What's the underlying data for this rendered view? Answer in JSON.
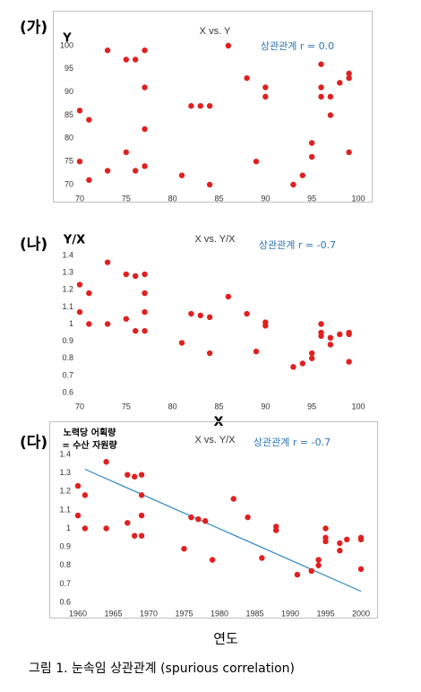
{
  "caption": "그림 1. 눈속임 상관관계 (spurious correlation)",
  "chart_data": [
    {
      "panel": "(가)",
      "type": "scatter",
      "title": "X vs. Y",
      "annotation": "상관관계 r = 0.0",
      "ylabel": "Y",
      "xlabel": "",
      "xlim": [
        70,
        100
      ],
      "ylim": [
        70,
        100
      ],
      "xticks": [
        70,
        75,
        80,
        85,
        90,
        95,
        100
      ],
      "yticks": [
        70,
        75,
        80,
        85,
        90,
        95,
        100
      ],
      "ytick_labels": [
        "70",
        "75",
        "80",
        "85",
        "90",
        "95",
        "100"
      ],
      "point_color": "#e02020",
      "points": [
        [
          70,
          86
        ],
        [
          70,
          75
        ],
        [
          71,
          84
        ],
        [
          71,
          71
        ],
        [
          73,
          99
        ],
        [
          73,
          73
        ],
        [
          75,
          97
        ],
        [
          75,
          77
        ],
        [
          76,
          97
        ],
        [
          76,
          73
        ],
        [
          77,
          99
        ],
        [
          77,
          91
        ],
        [
          77,
          82
        ],
        [
          77,
          74
        ],
        [
          81,
          72
        ],
        [
          82,
          87
        ],
        [
          83,
          87
        ],
        [
          84,
          87
        ],
        [
          84,
          70
        ],
        [
          86,
          100
        ],
        [
          88,
          93
        ],
        [
          89,
          75
        ],
        [
          90,
          91
        ],
        [
          90,
          89
        ],
        [
          93,
          70
        ],
        [
          94,
          72
        ],
        [
          95,
          79
        ],
        [
          95,
          76
        ],
        [
          96,
          96
        ],
        [
          96,
          91
        ],
        [
          96,
          89
        ],
        [
          97,
          89
        ],
        [
          97,
          85
        ],
        [
          98,
          92
        ],
        [
          99,
          94
        ],
        [
          99,
          93
        ],
        [
          99,
          77
        ]
      ]
    },
    {
      "panel": "(나)",
      "type": "scatter",
      "title": "X vs. Y/X",
      "annotation": "상관관계 r = -0.7",
      "ylabel": "Y/X",
      "xlabel": "X",
      "xlim": [
        70,
        100
      ],
      "ylim": [
        0.6,
        1.4
      ],
      "xticks": [
        70,
        75,
        80,
        85,
        90,
        95,
        100
      ],
      "yticks": [
        0.6,
        0.7,
        0.8,
        0.9,
        1.0,
        1.1,
        1.2,
        1.3,
        1.4
      ],
      "ytick_labels": [
        "0.6",
        "0.7",
        "0.8",
        "0.9",
        "1",
        "1.1",
        "1.2",
        "1.3",
        "1.4"
      ],
      "point_color": "#e02020",
      "points": [
        [
          70,
          1.23
        ],
        [
          70,
          1.07
        ],
        [
          71,
          1.18
        ],
        [
          71,
          1.0
        ],
        [
          73,
          1.36
        ],
        [
          73,
          1.0
        ],
        [
          75,
          1.29
        ],
        [
          75,
          1.03
        ],
        [
          76,
          1.28
        ],
        [
          76,
          0.96
        ],
        [
          77,
          1.29
        ],
        [
          77,
          1.18
        ],
        [
          77,
          1.07
        ],
        [
          77,
          0.96
        ],
        [
          81,
          0.89
        ],
        [
          82,
          1.06
        ],
        [
          83,
          1.05
        ],
        [
          84,
          1.04
        ],
        [
          84,
          0.83
        ],
        [
          86,
          1.16
        ],
        [
          88,
          1.06
        ],
        [
          89,
          0.84
        ],
        [
          90,
          1.01
        ],
        [
          90,
          0.99
        ],
        [
          93,
          0.75
        ],
        [
          94,
          0.77
        ],
        [
          95,
          0.83
        ],
        [
          95,
          0.8
        ],
        [
          96,
          1.0
        ],
        [
          96,
          0.95
        ],
        [
          96,
          0.93
        ],
        [
          97,
          0.92
        ],
        [
          97,
          0.88
        ],
        [
          98,
          0.94
        ],
        [
          99,
          0.95
        ],
        [
          99,
          0.94
        ],
        [
          99,
          0.78
        ]
      ]
    },
    {
      "panel": "(다)",
      "type": "scatter",
      "title": "X vs. Y/X",
      "annotation": "상관관계 r = -0.7",
      "ylabel_lines": [
        "노력당 어획량",
        "= 수산 자원량"
      ],
      "xlabel": "연도",
      "xlim": [
        1960,
        2000
      ],
      "ylim": [
        0.6,
        1.4
      ],
      "xticks": [
        1960,
        1965,
        1970,
        1975,
        1980,
        1985,
        1990,
        1995,
        2000
      ],
      "yticks": [
        0.6,
        0.7,
        0.8,
        0.9,
        1.0,
        1.1,
        1.2,
        1.3,
        1.4
      ],
      "ytick_labels": [
        "0.6",
        "0.7",
        "0.8",
        "0.9",
        "1",
        "1.1",
        "1.2",
        "1.3",
        "1.4"
      ],
      "point_color": "#e02020",
      "trend_color": "#2e86c1",
      "trendline": [
        [
          1961,
          1.32
        ],
        [
          2000,
          0.66
        ]
      ],
      "points": [
        [
          1960,
          1.23
        ],
        [
          1960,
          1.07
        ],
        [
          1961,
          1.18
        ],
        [
          1961,
          1.0
        ],
        [
          1964,
          1.36
        ],
        [
          1964,
          1.0
        ],
        [
          1967,
          1.29
        ],
        [
          1967,
          1.03
        ],
        [
          1968,
          1.28
        ],
        [
          1968,
          0.96
        ],
        [
          1969,
          1.29
        ],
        [
          1969,
          1.18
        ],
        [
          1969,
          1.07
        ],
        [
          1969,
          0.96
        ],
        [
          1975,
          0.89
        ],
        [
          1976,
          1.06
        ],
        [
          1977,
          1.05
        ],
        [
          1978,
          1.04
        ],
        [
          1979,
          0.83
        ],
        [
          1982,
          1.16
        ],
        [
          1984,
          1.06
        ],
        [
          1986,
          0.84
        ],
        [
          1988,
          1.01
        ],
        [
          1988,
          0.99
        ],
        [
          1991,
          0.75
        ],
        [
          1993,
          0.77
        ],
        [
          1994,
          0.83
        ],
        [
          1994,
          0.8
        ],
        [
          1995,
          1.0
        ],
        [
          1995,
          0.95
        ],
        [
          1995,
          0.93
        ],
        [
          1997,
          0.92
        ],
        [
          1997,
          0.88
        ],
        [
          1998,
          0.94
        ],
        [
          2000,
          0.95
        ],
        [
          2000,
          0.94
        ],
        [
          2000,
          0.78
        ]
      ]
    }
  ]
}
